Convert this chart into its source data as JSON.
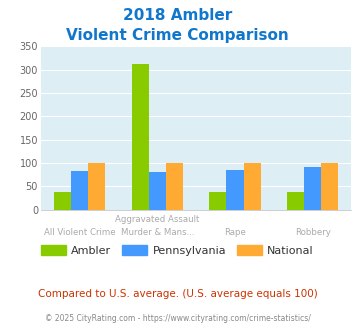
{
  "title_line1": "2018 Ambler",
  "title_line2": "Violent Crime Comparison",
  "top_labels": [
    "",
    "Aggravated Assault",
    "",
    ""
  ],
  "bot_labels": [
    "All Violent Crime",
    "Murder & Mans...",
    "Rape",
    "Robbery"
  ],
  "ambler_vals": [
    37,
    312,
    37,
    37
  ],
  "penn_vals": [
    82,
    80,
    85,
    91
  ],
  "nat_vals": [
    100,
    100,
    100,
    100
  ],
  "colors": {
    "Ambler": "#88cc00",
    "Pennsylvania": "#4499ff",
    "National": "#ffaa33"
  },
  "ylim": [
    0,
    350
  ],
  "yticks": [
    0,
    50,
    100,
    150,
    200,
    250,
    300,
    350
  ],
  "plot_bg": "#ddeef5",
  "title_color": "#1177cc",
  "label_color": "#aaaaaa",
  "footer_note": "Compared to U.S. average. (U.S. average equals 100)",
  "footer_copy": "© 2025 CityRating.com - https://www.cityrating.com/crime-statistics/"
}
